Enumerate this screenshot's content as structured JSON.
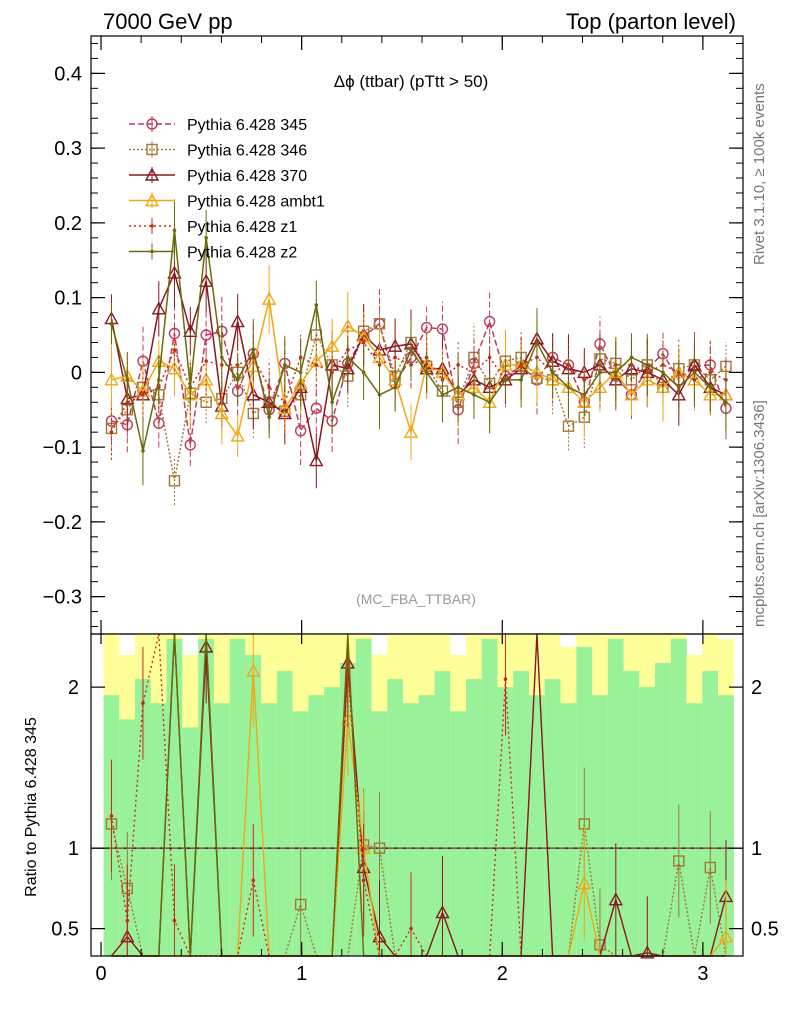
{
  "header": {
    "left": "7000 GeV pp",
    "right": "Top (parton level)"
  },
  "side_labels": {
    "rivet": "Rivet 3.1.10, ≥ 100k events",
    "mcplots": "mcplots.cern.ch [arXiv:1306.3436]"
  },
  "chart_data": {
    "type": "line",
    "title": "Δϕ (ttbar) (pTtt > 50)",
    "annotation": "(MC_FBA_TTBAR)",
    "xlabel": "",
    "ylabel": "",
    "xlim": [
      -0.05,
      3.2
    ],
    "ylim": [
      -0.35,
      0.45
    ],
    "x_ticks": [
      0,
      1,
      2,
      3
    ],
    "y_ticks": [
      0.4,
      0.3,
      0.2,
      0.1,
      0,
      -0.1,
      -0.2,
      -0.3
    ],
    "y_tick_labels": [
      "0.4",
      "0.3",
      "0.2",
      "0.1",
      "0",
      "−0.1",
      "−0.2",
      "−0.3"
    ],
    "legend_position": "top-left",
    "x": [
      0.052,
      0.131,
      0.209,
      0.288,
      0.366,
      0.445,
      0.524,
      0.602,
      0.681,
      0.759,
      0.838,
      0.916,
      0.995,
      1.073,
      1.152,
      1.23,
      1.309,
      1.388,
      1.466,
      1.545,
      1.623,
      1.702,
      1.78,
      1.859,
      1.937,
      2.016,
      2.094,
      2.173,
      2.251,
      2.33,
      2.409,
      2.487,
      2.566,
      2.644,
      2.723,
      2.801,
      2.88,
      2.958,
      3.037,
      3.115
    ],
    "series": [
      {
        "name": "Pythia 6.428 345",
        "color": "#c0395a",
        "marker": "circle",
        "dash": "6,3",
        "values": [
          -0.065,
          -0.07,
          0.015,
          -0.068,
          0.052,
          -0.097,
          0.05,
          0.055,
          -0.025,
          0.025,
          -0.05,
          0.012,
          -0.078,
          -0.048,
          -0.065,
          0.012,
          0.048,
          0.065,
          -0.015,
          0.02,
          0.06,
          0.058,
          -0.05,
          0.012,
          0.068,
          -0.005,
          0.008,
          -0.01,
          0.02,
          0.01,
          -0.04,
          0.038,
          -0.005,
          -0.03,
          0.005,
          0.025,
          -0.01,
          0.008,
          0.01,
          -0.048
        ]
      },
      {
        "name": "Pythia 6.428 346",
        "color": "#a07838",
        "marker": "square",
        "dash": "2,2",
        "values": [
          -0.075,
          -0.05,
          -0.02,
          -0.03,
          -0.145,
          -0.028,
          -0.04,
          -0.035,
          0.0,
          -0.055,
          -0.04,
          -0.052,
          -0.03,
          0.05,
          0.01,
          -0.005,
          0.055,
          0.065,
          -0.005,
          0.04,
          0.008,
          -0.025,
          -0.04,
          0.02,
          -0.015,
          0.015,
          0.02,
          -0.008,
          -0.01,
          -0.072,
          -0.06,
          0.018,
          0.012,
          -0.01,
          0.01,
          -0.02,
          0.005,
          0.01,
          -0.01,
          0.008
        ]
      },
      {
        "name": "Pythia 6.428 370",
        "color": "#8b1520",
        "marker": "triangle",
        "dash": "",
        "values": [
          0.072,
          -0.035,
          -0.03,
          0.085,
          0.133,
          0.055,
          0.122,
          -0.045,
          0.068,
          -0.03,
          -0.04,
          -0.055,
          -0.02,
          -0.118,
          0.01,
          0.005,
          0.05,
          0.03,
          0.035,
          0.038,
          0.005,
          0.005,
          -0.03,
          -0.01,
          -0.02,
          -0.01,
          0.005,
          0.045,
          0.015,
          0.005,
          0.0,
          0.01,
          -0.01,
          0.005,
          0.0,
          -0.01,
          -0.03,
          0.01,
          -0.02,
          -0.03
        ]
      },
      {
        "name": "Pythia 6.428 ambt1",
        "color": "#f0a818",
        "marker": "triangle",
        "dash": "",
        "values": [
          -0.01,
          -0.005,
          -0.025,
          0.015,
          0.005,
          -0.03,
          -0.01,
          -0.055,
          -0.085,
          0.008,
          0.098,
          -0.048,
          -0.015,
          0.015,
          0.035,
          0.062,
          0.048,
          0.02,
          -0.01,
          -0.08,
          0.01,
          0.0,
          -0.03,
          -0.02,
          -0.04,
          0.01,
          0.01,
          0.0,
          -0.01,
          -0.02,
          -0.04,
          -0.02,
          0.0,
          -0.03,
          -0.01,
          -0.02,
          0.0,
          -0.01,
          -0.03,
          -0.03
        ]
      },
      {
        "name": "Pythia 6.428 z1",
        "color": "#d02818",
        "marker": "dot",
        "dash": "2,3",
        "values": [
          -0.08,
          -0.04,
          -0.03,
          -0.02,
          0.03,
          -0.02,
          0.015,
          0.01,
          0.01,
          0.02,
          -0.02,
          -0.04,
          0.02,
          0.01,
          0.0,
          0.03,
          0.04,
          0.01,
          0.02,
          0.01,
          0.02,
          -0.01,
          0.01,
          0.0,
          0.02,
          -0.01,
          0.01,
          0.02,
          0.0,
          0.01,
          -0.01,
          0.0,
          0.01,
          0.01,
          0.0,
          0.01,
          0.0,
          -0.01,
          0.0,
          -0.01
        ]
      },
      {
        "name": "Pythia 6.428 z2",
        "color": "#6b6a08",
        "marker": "dot",
        "dash": "",
        "values": [
          0.065,
          -0.01,
          -0.105,
          -0.01,
          0.19,
          -0.02,
          0.18,
          0.02,
          -0.01,
          0.03,
          -0.06,
          0.01,
          0.0,
          0.09,
          -0.04,
          0.02,
          0.0,
          -0.03,
          -0.02,
          0.03,
          0.0,
          -0.03,
          -0.02,
          -0.03,
          -0.04,
          -0.01,
          -0.01,
          0.04,
          0.0,
          -0.02,
          -0.03,
          0.0,
          0.0,
          0.02,
          0.01,
          0.0,
          -0.02,
          0.0,
          -0.02,
          -0.04
        ]
      }
    ],
    "ratio": {
      "ylabel": "Ratio to Pythia 6.428 345",
      "ylim": [
        0.33,
        2.33
      ],
      "y_ticks": [
        0.5,
        1,
        2
      ],
      "y_tick_labels": [
        "0.5",
        "1",
        "2"
      ],
      "reference": 1,
      "band_inner": [
        0.45,
        0.45,
        0.45,
        0.45,
        0.45,
        0.45,
        0.45,
        0.45,
        0.45,
        0.45,
        0.45,
        0.45,
        0.45,
        0.45,
        0.45,
        0.45,
        0.45,
        0.45,
        0.45,
        0.45,
        0.45,
        0.45,
        0.45,
        0.45,
        0.45,
        0.45,
        0.45,
        0.45,
        0.45,
        0.45,
        0.45,
        0.45,
        0.45,
        0.45,
        0.45,
        0.45,
        0.45,
        0.45,
        0.45,
        0.45
      ],
      "band_inner_hi": [
        1.95,
        1.8,
        2.05,
        1.9,
        2.3,
        1.75,
        2.3,
        1.9,
        2.3,
        2.2,
        1.9,
        2.1,
        1.85,
        1.95,
        2.0,
        2.15,
        2.3,
        1.85,
        2.05,
        1.9,
        1.95,
        2.1,
        1.85,
        2.05,
        2.3,
        2.0,
        2.1,
        1.95,
        2.05,
        1.9,
        2.25,
        1.95,
        2.3,
        2.1,
        2.0,
        2.15,
        2.3,
        1.9,
        2.1,
        1.95
      ],
      "band_outer_hi": [
        2.33,
        2.2,
        2.33,
        2.33,
        2.33,
        2.2,
        2.33,
        2.33,
        2.33,
        2.33,
        2.33,
        2.33,
        2.33,
        2.33,
        2.33,
        2.33,
        2.33,
        2.2,
        2.33,
        2.33,
        2.33,
        2.33,
        2.2,
        2.33,
        2.33,
        2.33,
        2.33,
        2.33,
        2.33,
        2.25,
        2.33,
        2.33,
        2.33,
        2.33,
        2.33,
        2.33,
        2.33,
        2.2,
        2.33,
        2.3
      ],
      "ratio_series": [
        {
          "name": "Pythia 6.428 346",
          "values": [
            1.15,
            0.75,
            0.3,
            0.3,
            0.3,
            0.3,
            0.3,
            0.3,
            0.3,
            0.3,
            0.3,
            0.3,
            0.65,
            0.3,
            0.3,
            0.3,
            1.02,
            1.0,
            0.3,
            0.3,
            0.3,
            0.3,
            0.3,
            0.3,
            0.3,
            0.3,
            0.3,
            0.3,
            0.3,
            0.3,
            1.15,
            0.4,
            0.3,
            0.3,
            0.3,
            0.3,
            0.92,
            0.3,
            0.88,
            0.3
          ]
        },
        {
          "name": "Pythia 6.428 370",
          "values": [
            0.3,
            0.45,
            0.3,
            0.3,
            2.33,
            0.3,
            2.25,
            0.3,
            0.3,
            0.3,
            0.3,
            0.3,
            0.3,
            0.3,
            0.3,
            2.15,
            0.88,
            0.45,
            0.3,
            0.3,
            0.3,
            0.6,
            0.3,
            0.3,
            0.3,
            0.3,
            0.3,
            2.33,
            0.3,
            0.3,
            0.3,
            0.3,
            0.68,
            0.3,
            0.35,
            0.3,
            0.3,
            0.3,
            0.3,
            0.7
          ]
        },
        {
          "name": "Pythia 6.428 ambt1",
          "values": [
            0.3,
            0.3,
            0.3,
            0.3,
            0.3,
            0.3,
            0.3,
            0.3,
            0.3,
            2.1,
            0.3,
            0.3,
            0.3,
            0.3,
            0.3,
            1.8,
            1.0,
            0.3,
            0.3,
            0.3,
            0.3,
            0.3,
            0.3,
            0.3,
            0.3,
            0.3,
            0.3,
            0.3,
            0.3,
            0.3,
            0.78,
            0.3,
            0.3,
            0.3,
            0.3,
            0.3,
            0.3,
            0.3,
            0.3,
            0.45
          ]
        },
        {
          "name": "Pythia 6.428 z1",
          "values": [
            1.2,
            0.55,
            1.9,
            2.33,
            0.55,
            0.3,
            0.3,
            0.3,
            0.3,
            0.8,
            0.3,
            0.3,
            0.3,
            0.3,
            0.3,
            2.1,
            0.8,
            0.2,
            0.3,
            0.5,
            0.3,
            0.3,
            0.3,
            0.3,
            0.3,
            2.05,
            0.3,
            0.3,
            0.3,
            0.3,
            0.3,
            0.3,
            0.3,
            0.3,
            0.3,
            0.3,
            0.3,
            0.3,
            0.3,
            0.3
          ]
        },
        {
          "name": "Pythia 6.428 z2",
          "values": [
            0.3,
            0.3,
            0.3,
            0.3,
            2.33,
            0.3,
            2.33,
            0.3,
            0.3,
            0.3,
            0.3,
            0.3,
            0.3,
            0.3,
            0.3,
            2.33,
            0.3,
            0.3,
            0.3,
            0.3,
            0.3,
            0.3,
            0.3,
            0.3,
            0.3,
            0.3,
            0.3,
            0.3,
            0.3,
            0.3,
            0.3,
            0.3,
            0.3,
            0.3,
            0.3,
            0.3,
            0.3,
            0.3,
            0.3,
            0.3
          ]
        }
      ]
    }
  }
}
